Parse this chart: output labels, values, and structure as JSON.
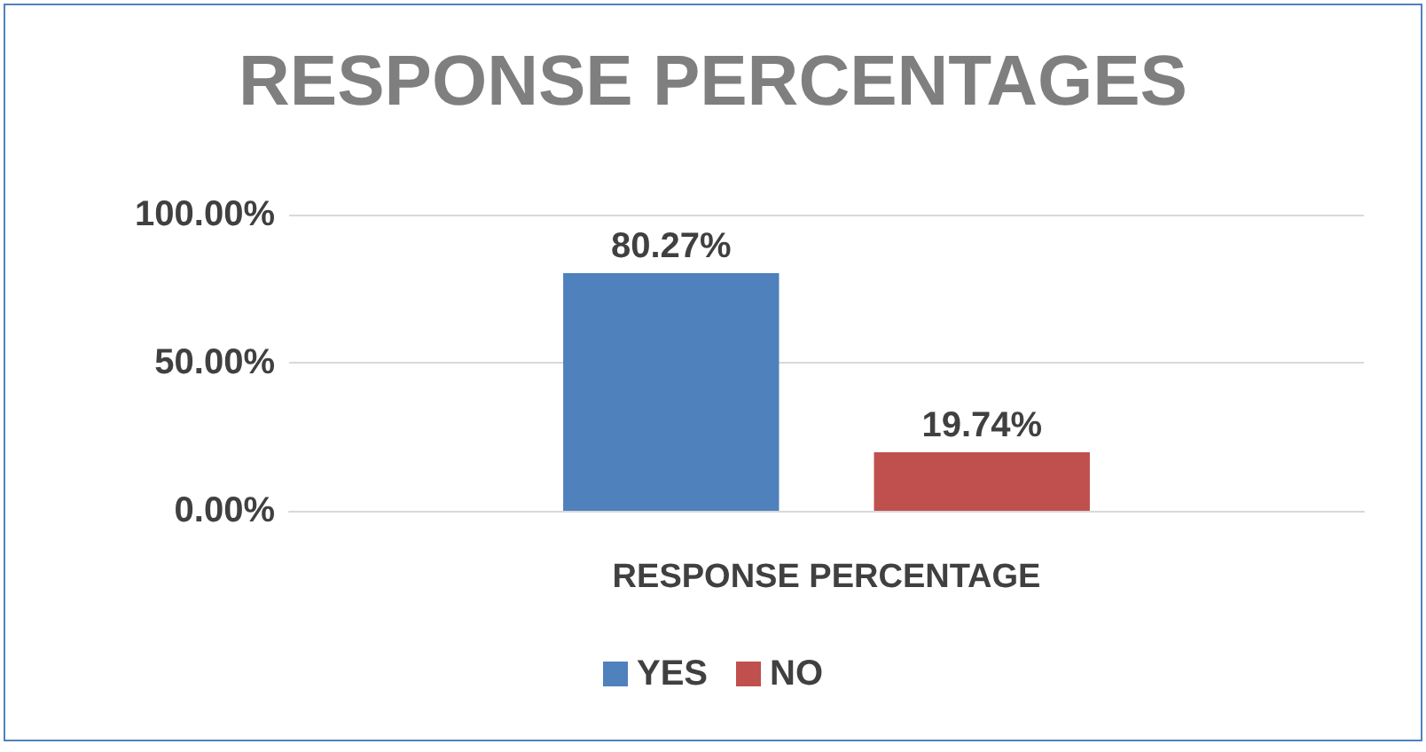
{
  "chart_data": {
    "type": "bar",
    "title": "RESPONSE PERCENTAGES",
    "categories": [
      "RESPONSE PERCENTAGE"
    ],
    "series": [
      {
        "name": "YES",
        "color": "#4f81bd",
        "values": [
          80.27
        ],
        "value_labels": [
          "80.27%"
        ]
      },
      {
        "name": "NO",
        "color": "#c0504d",
        "values": [
          19.74
        ],
        "value_labels": [
          "19.74%"
        ]
      }
    ],
    "ylim": [
      0,
      100
    ],
    "yticks": [
      {
        "value": 0,
        "label": "0.00%"
      },
      {
        "value": 50,
        "label": "50.00%"
      },
      {
        "value": 100,
        "label": "100.00%"
      }
    ],
    "grid": "y",
    "legend": "bottom"
  }
}
